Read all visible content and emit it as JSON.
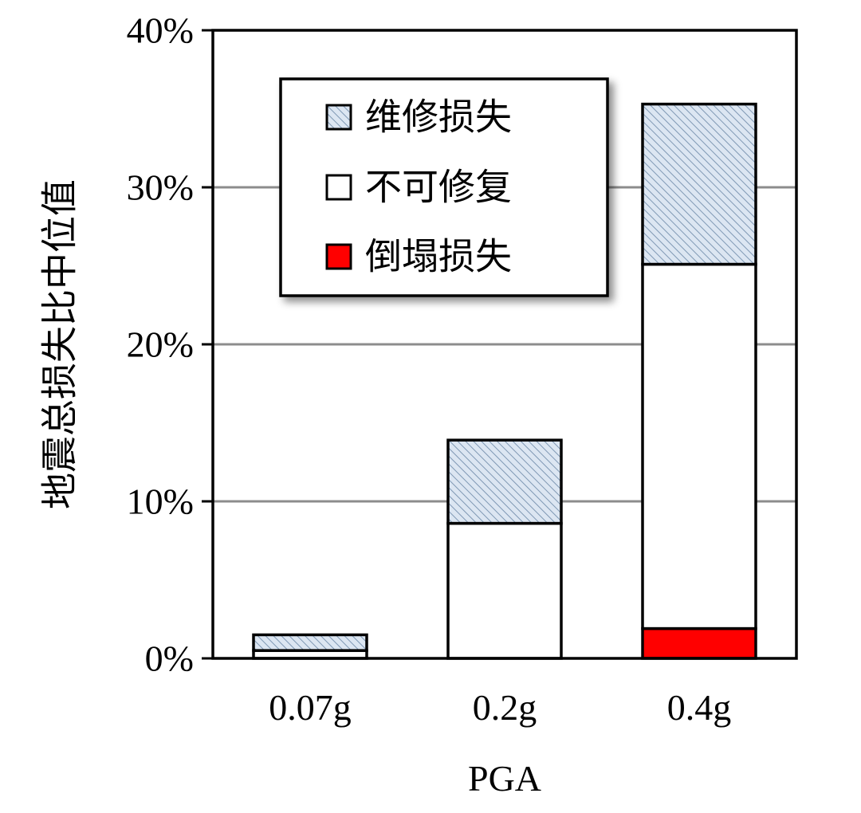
{
  "chart_data": {
    "type": "bar",
    "stacked": true,
    "xlabel": "PGA",
    "ylabel": "地震总损失比中位值",
    "categories": [
      "0.07g",
      "0.2g",
      "0.4g"
    ],
    "ylim": [
      0,
      40
    ],
    "y_ticks": [
      0,
      10,
      20,
      30,
      40
    ],
    "y_tick_labels": [
      "0%",
      "10%",
      "20%",
      "30%",
      "40%"
    ],
    "grid": true,
    "legend_position": "top-left",
    "series": [
      {
        "name": "倒塌损失",
        "values": [
          0,
          0,
          1.9
        ],
        "color": "#ff0000",
        "pattern": "solid"
      },
      {
        "name": "不可修复",
        "values": [
          0.5,
          8.6,
          23.2
        ],
        "color": "#ffffff",
        "pattern": "solid"
      },
      {
        "name": "维修损失",
        "values": [
          1.0,
          5.3,
          10.2
        ],
        "color": "#dce6f2",
        "pattern": "hatch"
      }
    ],
    "legend_order": [
      "维修损失",
      "不可修复",
      "倒塌损失"
    ]
  }
}
